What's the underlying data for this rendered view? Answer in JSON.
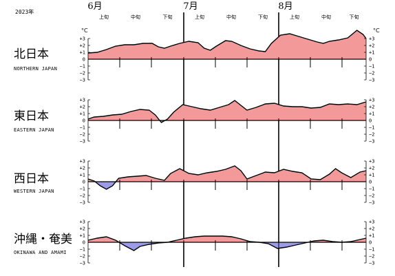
{
  "year_label": "2023年",
  "month_labels": [
    "6月",
    "7月",
    "8月"
  ],
  "dekad_labels": [
    "上旬",
    "中旬",
    "下旬",
    "上旬",
    "中旬",
    "下旬",
    "上旬",
    "中旬",
    "下旬"
  ],
  "unit_label": "°C",
  "colors": {
    "positive_fill": "#f4999a",
    "negative_fill": "#9b9be6",
    "line": "#000000"
  },
  "chart_data": [
    {
      "type": "area",
      "region": "北日本",
      "region_en": "NORTHERN JAPAN",
      "ylim": [
        -3,
        3
      ],
      "yticks": [
        3,
        2,
        1,
        0,
        -1,
        -2,
        -3
      ],
      "x_unit": "day index from June 1 (0 = 6月1日, 91 = 8月31日)",
      "points": [
        [
          0,
          0.9
        ],
        [
          3,
          1.0
        ],
        [
          6,
          1.4
        ],
        [
          9,
          1.9
        ],
        [
          12,
          2.1
        ],
        [
          15,
          2.1
        ],
        [
          18,
          2.3
        ],
        [
          21,
          2.3
        ],
        [
          23,
          1.8
        ],
        [
          25,
          1.6
        ],
        [
          27,
          1.9
        ],
        [
          30,
          2.3
        ],
        [
          33,
          2.6
        ],
        [
          36,
          2.4
        ],
        [
          38,
          1.6
        ],
        [
          40,
          1.3
        ],
        [
          42,
          1.9
        ],
        [
          45,
          2.7
        ],
        [
          47,
          2.6
        ],
        [
          50,
          2.0
        ],
        [
          53,
          1.5
        ],
        [
          56,
          1.2
        ],
        [
          58,
          1.1
        ],
        [
          60,
          2.3
        ],
        [
          63,
          3.5
        ],
        [
          66,
          3.7
        ],
        [
          69,
          3.3
        ],
        [
          72,
          2.9
        ],
        [
          75,
          2.5
        ],
        [
          77,
          2.3
        ],
        [
          79,
          2.6
        ],
        [
          82,
          2.8
        ],
        [
          85,
          3.1
        ],
        [
          88,
          4.2
        ],
        [
          90,
          3.6
        ],
        [
          91,
          3.0
        ]
      ]
    },
    {
      "type": "area",
      "region": "東日本",
      "region_en": "EASTERN JAPAN",
      "ylim": [
        -3,
        3
      ],
      "yticks": [
        3,
        2,
        1,
        0,
        -1,
        -2,
        -3
      ],
      "x_unit": "day index from June 1 (0 = 6月1日, 91 = 8月31日)",
      "points": [
        [
          0,
          0.2
        ],
        [
          2,
          0.5
        ],
        [
          5,
          0.6
        ],
        [
          8,
          0.8
        ],
        [
          11,
          0.9
        ],
        [
          14,
          1.3
        ],
        [
          17,
          1.6
        ],
        [
          20,
          1.5
        ],
        [
          22,
          0.8
        ],
        [
          24,
          -0.3
        ],
        [
          26,
          0.2
        ],
        [
          28,
          1.2
        ],
        [
          31,
          2.3
        ],
        [
          34,
          2.0
        ],
        [
          37,
          1.7
        ],
        [
          40,
          1.5
        ],
        [
          43,
          1.9
        ],
        [
          46,
          2.3
        ],
        [
          48,
          2.9
        ],
        [
          50,
          2.2
        ],
        [
          52,
          1.5
        ],
        [
          55,
          1.9
        ],
        [
          58,
          2.4
        ],
        [
          61,
          2.5
        ],
        [
          64,
          2.1
        ],
        [
          67,
          2.0
        ],
        [
          70,
          2.0
        ],
        [
          73,
          1.8
        ],
        [
          76,
          1.9
        ],
        [
          79,
          2.4
        ],
        [
          82,
          2.3
        ],
        [
          85,
          2.4
        ],
        [
          88,
          2.3
        ],
        [
          91,
          2.7
        ]
      ]
    },
    {
      "type": "area",
      "region": "西日本",
      "region_en": "WESTERN JAPAN",
      "ylim": [
        -3,
        3
      ],
      "yticks": [
        3,
        2,
        1,
        0,
        -1,
        -2,
        -3
      ],
      "x_unit": "day index from June 1 (0 = 6月1日, 91 = 8月31日)",
      "points": [
        [
          0,
          0.4
        ],
        [
          2,
          0.1
        ],
        [
          4,
          -0.6
        ],
        [
          6,
          -1.1
        ],
        [
          8,
          -0.6
        ],
        [
          10,
          0.5
        ],
        [
          13,
          0.7
        ],
        [
          16,
          0.8
        ],
        [
          19,
          0.9
        ],
        [
          22,
          0.5
        ],
        [
          25,
          0.2
        ],
        [
          27,
          1.2
        ],
        [
          30,
          1.9
        ],
        [
          33,
          1.2
        ],
        [
          36,
          1.0
        ],
        [
          39,
          1.3
        ],
        [
          42,
          1.5
        ],
        [
          45,
          1.8
        ],
        [
          48,
          2.3
        ],
        [
          50,
          1.6
        ],
        [
          52,
          0.4
        ],
        [
          55,
          0.9
        ],
        [
          58,
          1.4
        ],
        [
          61,
          1.3
        ],
        [
          64,
          1.8
        ],
        [
          67,
          1.5
        ],
        [
          70,
          1.3
        ],
        [
          73,
          0.4
        ],
        [
          76,
          0.3
        ],
        [
          79,
          1.1
        ],
        [
          81,
          1.9
        ],
        [
          83,
          1.3
        ],
        [
          86,
          0.6
        ],
        [
          89,
          1.4
        ],
        [
          91,
          1.6
        ]
      ]
    },
    {
      "type": "area",
      "region": "沖縄・奄美",
      "region_en": "OKINAWA AND AMAMI",
      "ylim": [
        -3,
        3
      ],
      "yticks": [
        3,
        2,
        1,
        0,
        -1,
        -2,
        -3
      ],
      "x_unit": "day index from June 1 (0 = 6月1日, 91 = 8月31日)",
      "points": [
        [
          0,
          0.3
        ],
        [
          3,
          0.6
        ],
        [
          6,
          0.8
        ],
        [
          9,
          0.3
        ],
        [
          12,
          -0.5
        ],
        [
          15,
          -1.2
        ],
        [
          17,
          -0.6
        ],
        [
          20,
          -0.3
        ],
        [
          23,
          -0.1
        ],
        [
          26,
          0.0
        ],
        [
          29,
          0.3
        ],
        [
          32,
          0.6
        ],
        [
          35,
          0.8
        ],
        [
          38,
          0.9
        ],
        [
          41,
          0.9
        ],
        [
          44,
          0.9
        ],
        [
          47,
          0.8
        ],
        [
          50,
          0.5
        ],
        [
          53,
          0.1
        ],
        [
          56,
          0.0
        ],
        [
          59,
          -0.2
        ],
        [
          62,
          -0.9
        ],
        [
          65,
          -0.7
        ],
        [
          68,
          -0.4
        ],
        [
          71,
          -0.1
        ],
        [
          74,
          0.2
        ],
        [
          77,
          0.3
        ],
        [
          80,
          0.1
        ],
        [
          83,
          0.0
        ],
        [
          86,
          0.1
        ],
        [
          89,
          0.4
        ],
        [
          91,
          0.6
        ]
      ]
    }
  ]
}
